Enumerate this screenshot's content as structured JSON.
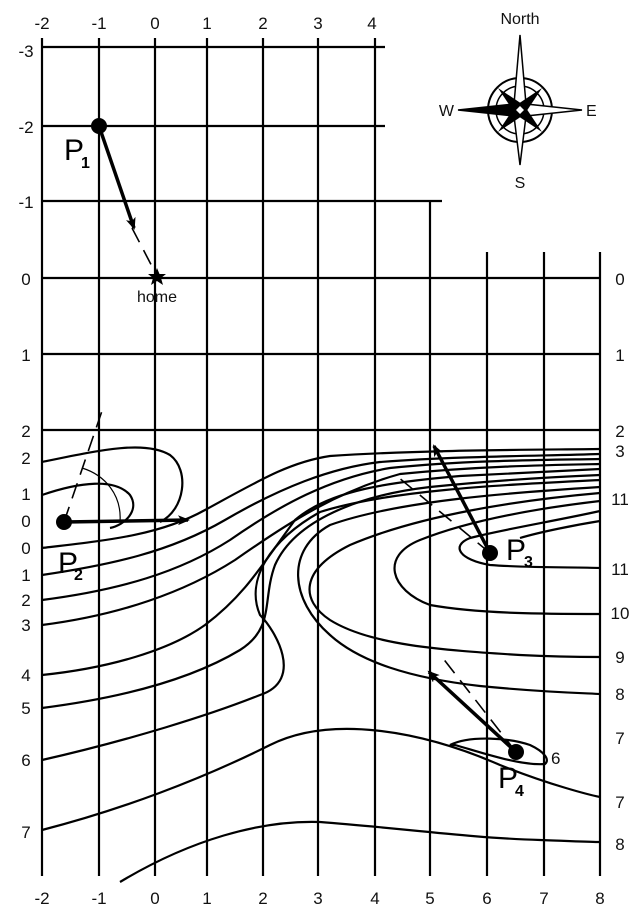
{
  "x_ticks": [
    "-2",
    "-1",
    "0",
    "1",
    "2",
    "3",
    "4",
    "5",
    "6",
    "7",
    "8"
  ],
  "y_ticks": [
    "-3",
    "-2",
    "-1",
    "0",
    "1",
    "2"
  ],
  "right_y_ticks": [
    "0",
    "1",
    "2"
  ],
  "left_contour_labels": [
    "2",
    "1",
    "0",
    "0",
    "1",
    "2",
    "3",
    "4",
    "5",
    "6",
    "7"
  ],
  "right_contour_labels": [
    "3",
    "11",
    "11",
    "10",
    "9",
    "8",
    "7",
    "6",
    "7",
    "8"
  ],
  "compass": {
    "north": "North",
    "south": "S",
    "east": "E",
    "west": "W"
  },
  "home": {
    "label": "home"
  },
  "points": [
    {
      "letter": "P",
      "sub": "1"
    },
    {
      "letter": "P",
      "sub": "2"
    },
    {
      "letter": "P",
      "sub": "3"
    },
    {
      "letter": "P",
      "sub": "4"
    }
  ]
}
